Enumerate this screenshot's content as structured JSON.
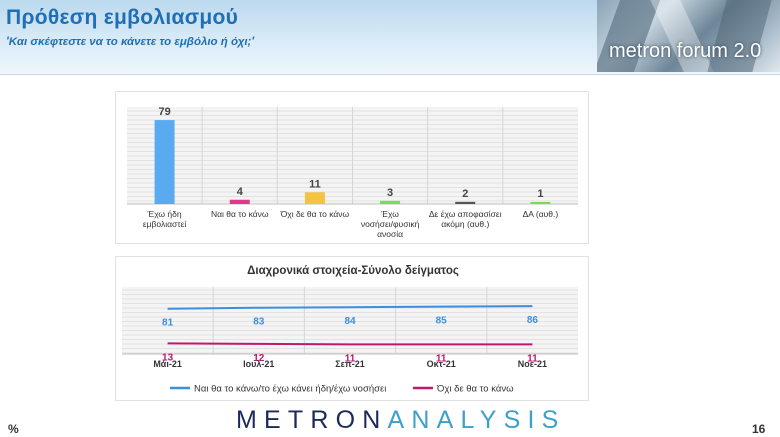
{
  "header": {
    "title": "Πρόθεση εμβολιασμού",
    "subtitle": "'Και σκέφτεστε να το κάνετε το εμβόλιο ή όχι;'",
    "forum_logo_text": "metron forum 2.0"
  },
  "chart_data": [
    {
      "type": "bar",
      "categories": [
        [
          "Έχω ήδη",
          "εμβολιαστεί"
        ],
        [
          "Ναι θα το κάνω"
        ],
        [
          "Όχι δε θα το κάνω"
        ],
        [
          "Έχω",
          "νοσήσει/φυσική",
          "ανοσία"
        ],
        [
          "Δε έχω αποφασίσει",
          "ακόμη (αυθ.)"
        ],
        [
          "ΔΑ (αυθ.)"
        ]
      ],
      "values": [
        79,
        4,
        11,
        3,
        2,
        1
      ],
      "colors": [
        "#5aaaf0",
        "#e0388a",
        "#f5c342",
        "#7ed957",
        "#555555",
        "#7ed957"
      ],
      "ylim": [
        0,
        80
      ],
      "grid": true
    },
    {
      "type": "line",
      "title": "Διαχρονικά στοιχεία-Σύνολο δείγματος",
      "categories": [
        "Μάι-21",
        "Ιουλ-21",
        "Σεπ-21",
        "Οκτ-21",
        "Νοε-21"
      ],
      "series": [
        {
          "name": "Ναι θα το κάνω/το έχω κάνει ήδη/έχω νοσήσει",
          "values": [
            81,
            83,
            84,
            85,
            86
          ],
          "color": "#3b8fe0"
        },
        {
          "name": "Όχι δε θα το κάνω",
          "values": [
            13,
            12,
            11,
            11,
            11
          ],
          "color": "#c0186d"
        }
      ],
      "ylim": [
        0,
        100
      ],
      "grid": true,
      "legend": "bottom"
    }
  ],
  "footer": {
    "percent": "%",
    "brand_dark": "METRON",
    "brand_light": "ANALYSIS",
    "page_number": "16"
  }
}
